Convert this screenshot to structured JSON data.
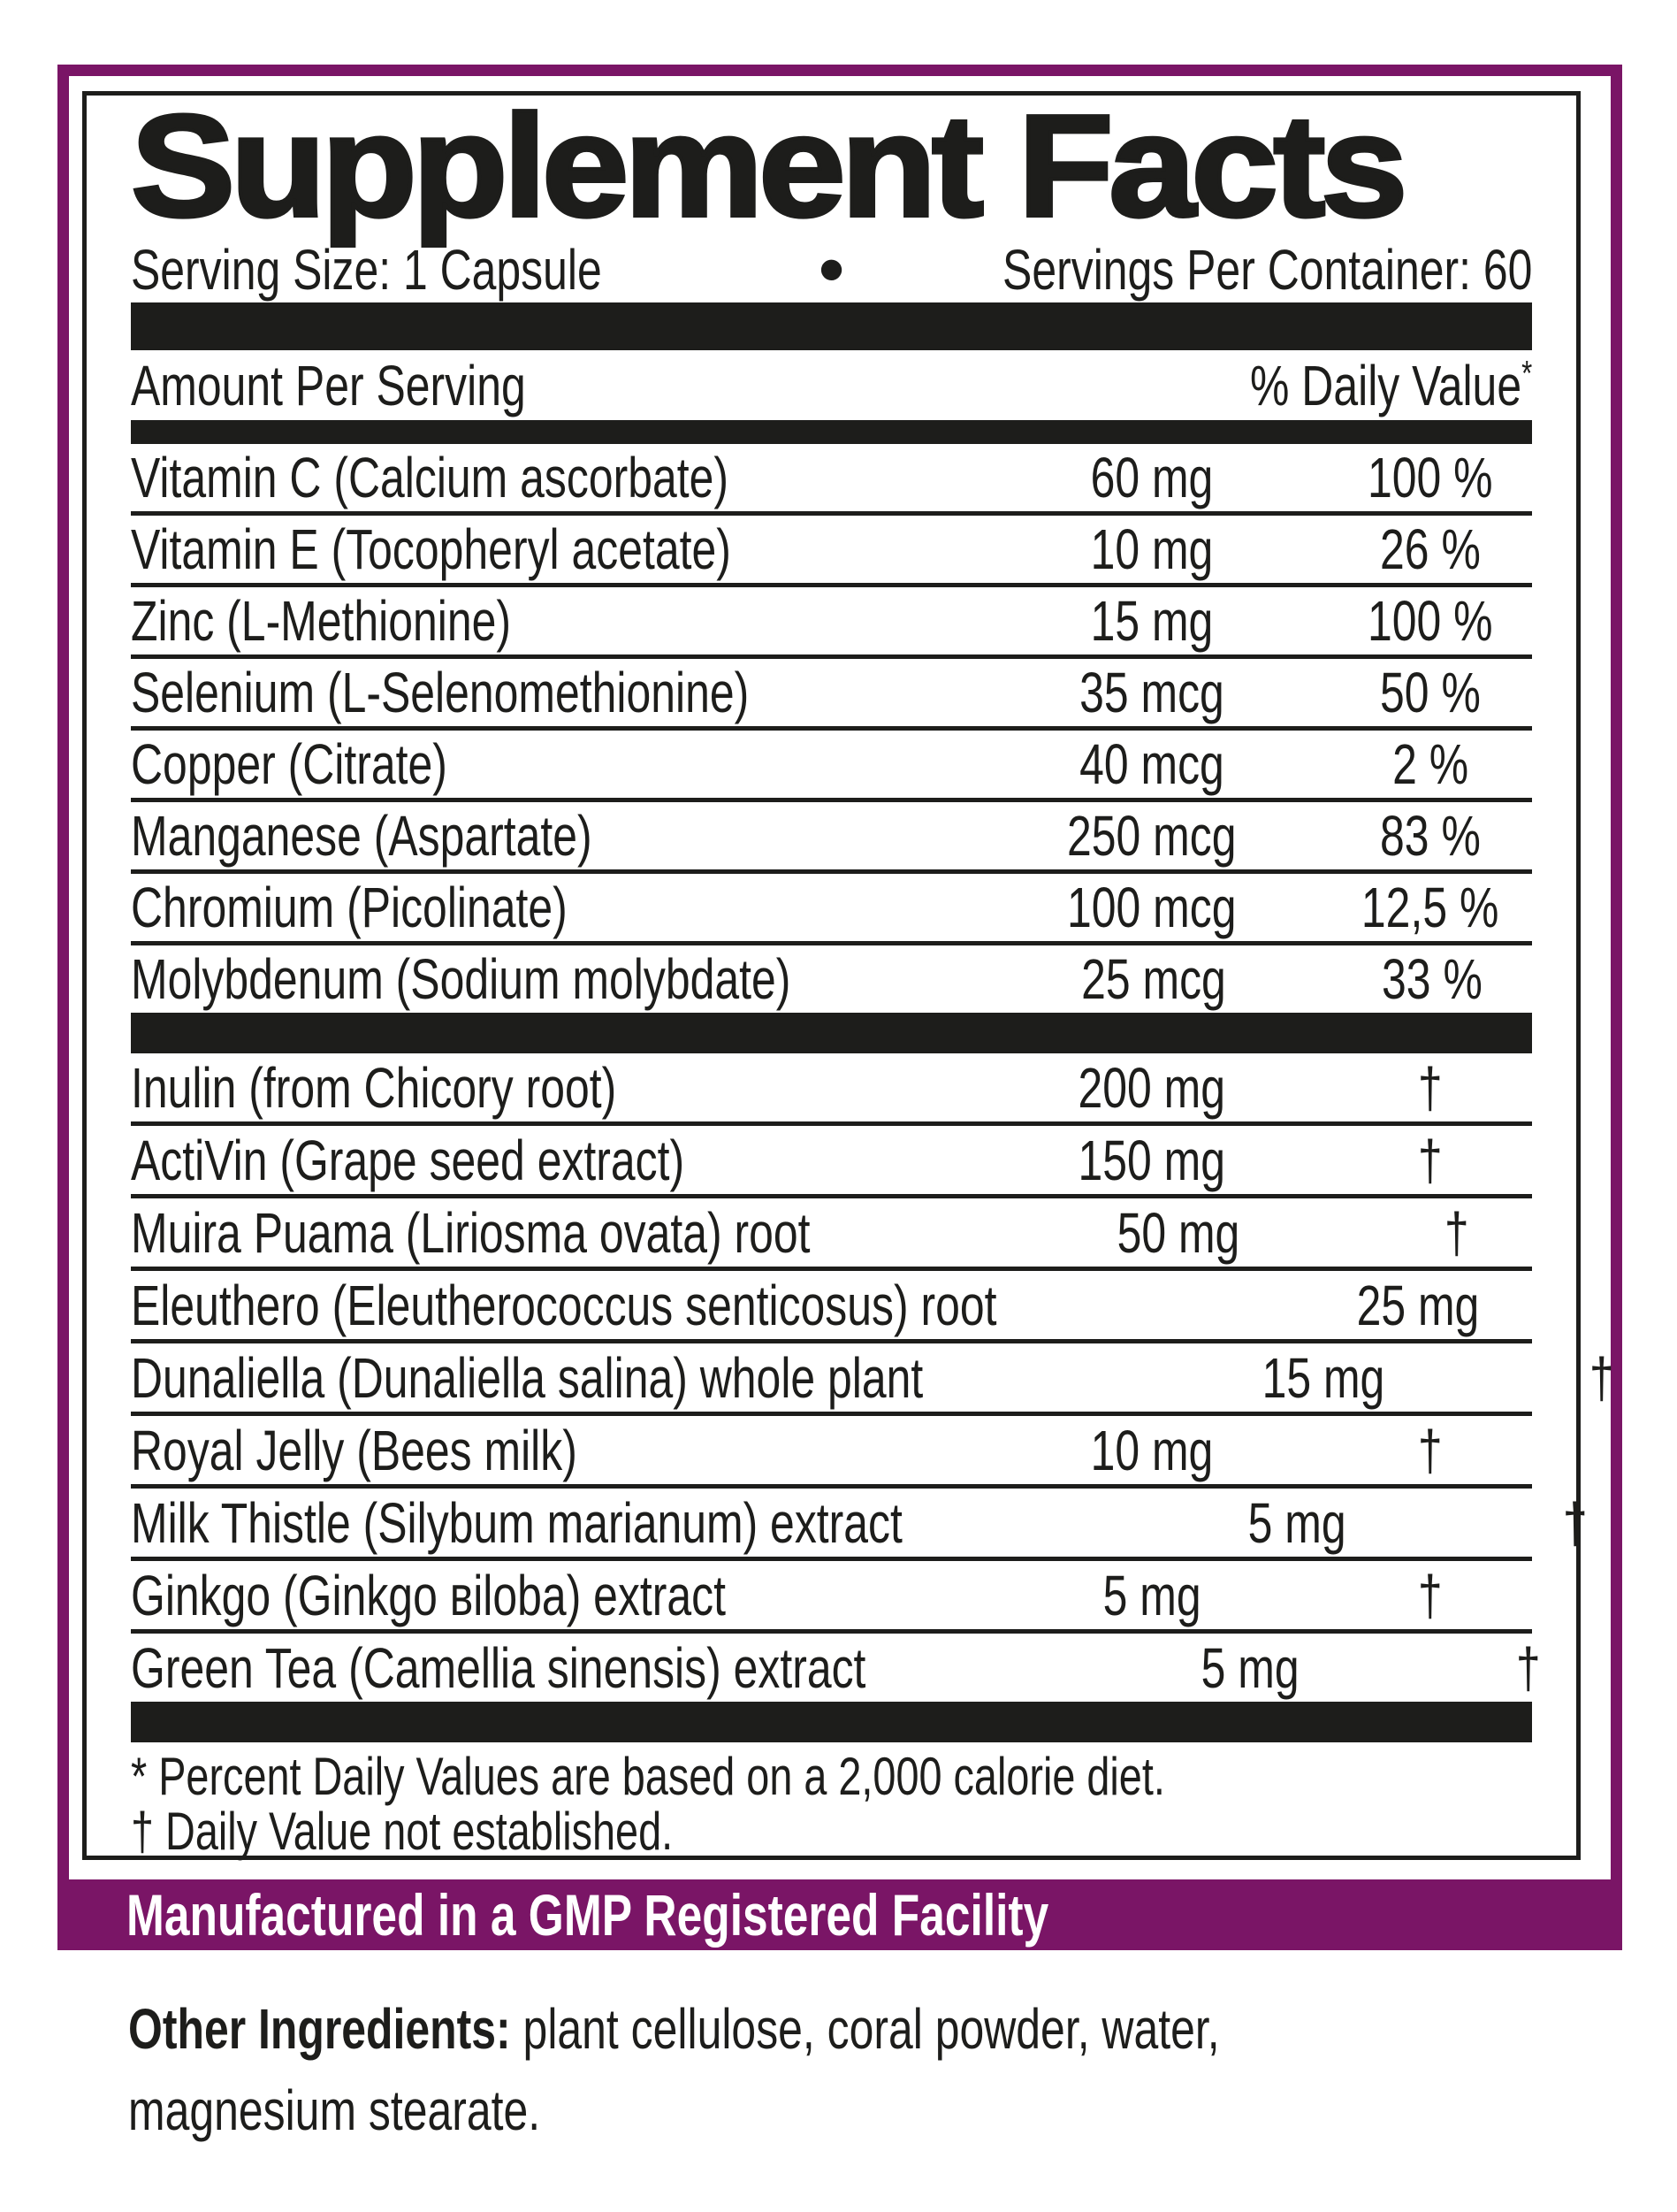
{
  "title": "Supplement Facts",
  "serving": {
    "size_label": "Serving Size: 1 Capsule",
    "bullet": "•",
    "per_container": "Servings Per Container: 60"
  },
  "table": {
    "header": {
      "amount_per_serving": "Amount Per Serving",
      "daily_value": "% Daily Value",
      "asterisk": "*"
    },
    "section1": [
      {
        "name": "Vitamin C (Calcium ascorbate)",
        "amount": "60 mg",
        "dv": "100 %"
      },
      {
        "name": "Vitamin E (Tocopheryl acetate)",
        "amount": "10 mg",
        "dv": "26 %"
      },
      {
        "name": "Zinc (L-Methionine)",
        "amount": "15 mg",
        "dv": "100 %"
      },
      {
        "name": "Selenium (L-Selenomethionine)",
        "amount": "35 mcg",
        "dv": "50 %"
      },
      {
        "name": "Copper (Citrate)",
        "amount": "40 mcg",
        "dv": "2 %"
      },
      {
        "name": "Manganese (Aspartate)",
        "amount": "250 mcg",
        "dv": "83 %"
      },
      {
        "name": "Chromium (Picolinate)",
        "amount": "100 mcg",
        "dv": "12,5 %"
      },
      {
        "name": "Molybdenum (Sodium molybdate)",
        "amount": "25 mcg",
        "dv": "33 %"
      }
    ],
    "section2": [
      {
        "name": "Inulin (from Chicory root)",
        "amount": "200 mg",
        "dv": "†"
      },
      {
        "name": "ActiVin (Grape seed extract)",
        "amount": "150 mg",
        "dv": "†"
      },
      {
        "name": "Muira Puama (Liriosma ovata) root",
        "amount": "50 mg",
        "dv": "†"
      },
      {
        "name": "Eleuthero (Eleutherococcus senticosus) root",
        "amount": "25 mg",
        "dv": "†"
      },
      {
        "name": "Dunaliella (Dunaliella salina) whole plant",
        "amount": "15 mg",
        "dv": "†"
      },
      {
        "name": "Royal Jelly (Bees milk)",
        "amount": "10 mg",
        "dv": "†"
      },
      {
        "name": "Milk Thistle (Silybum marianum) extract",
        "amount": "5 mg",
        "dv": "†"
      },
      {
        "name": "Ginkgo (Ginkgo вiloba) extract",
        "amount": "5 mg",
        "dv": "†"
      },
      {
        "name": "Green Tea (Camellia sinensis) extract",
        "amount": "5 mg",
        "dv": "†"
      }
    ]
  },
  "footnotes": {
    "asterisk_note": "* Percent Daily Values are based on a 2,000 calorie diet.",
    "dagger_note": "† Daily Value not established."
  },
  "banner": "Manufactured in a GMP Registered Facility",
  "other_ingredients": {
    "label": "Other Ingredients:",
    "line1_rest": " plant cellulose, coral powder, water,",
    "line2": "magnesium stearate."
  },
  "colors": {
    "purple": "#7a1566",
    "ink": "#1d1d1b"
  }
}
